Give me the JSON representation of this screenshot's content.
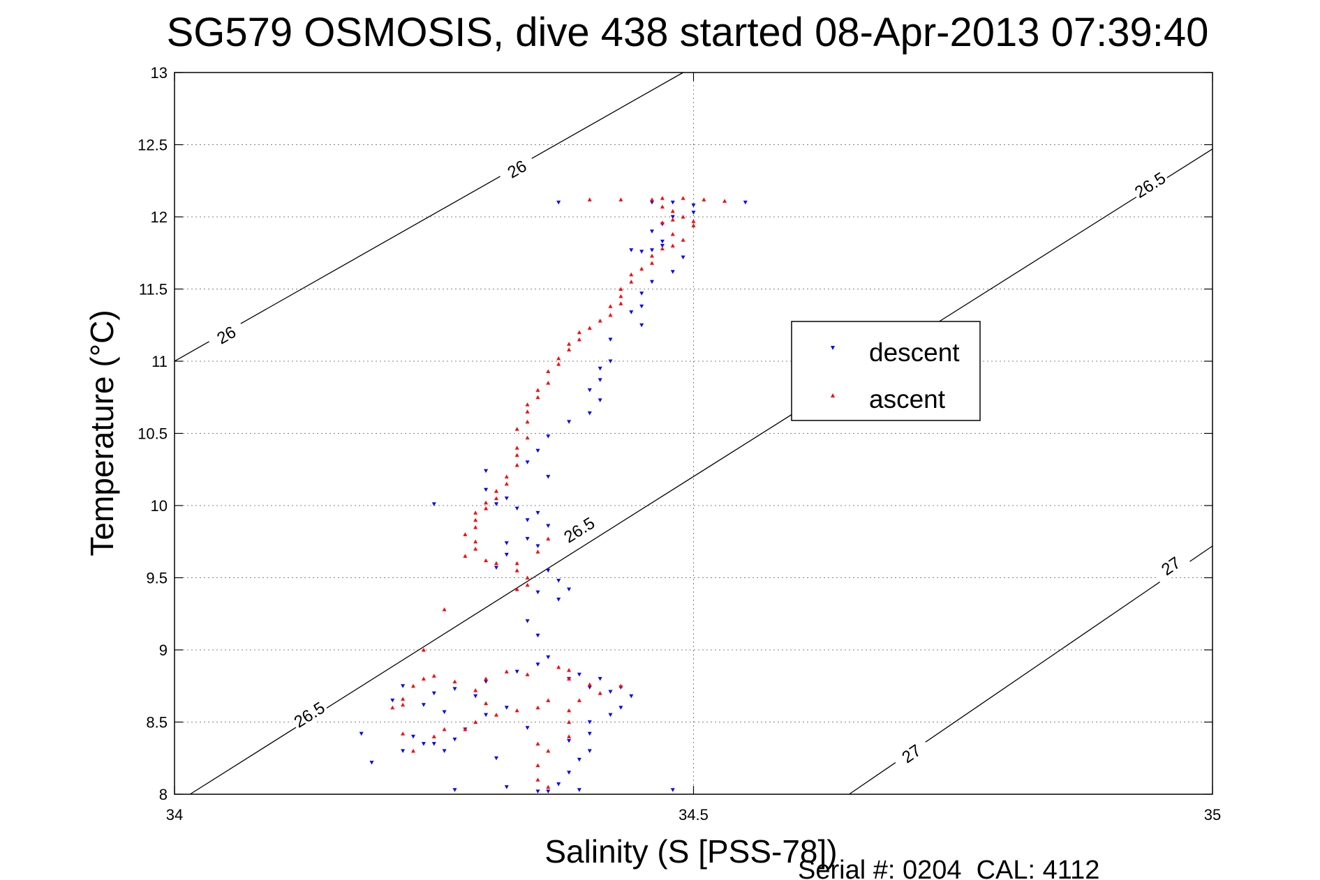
{
  "chart_data": {
    "type": "scatter",
    "title": "SG579 OSMOSIS, dive 438 started 08-Apr-2013 07:39:40",
    "xlabel": "Salinity (S [PSS-78])",
    "ylabel": "Temperature (°C)",
    "footer": "Serial #: 0204  CAL: 4112",
    "xlim": [
      34,
      35
    ],
    "ylim": [
      8,
      13
    ],
    "xticks": [
      34,
      34.5,
      35
    ],
    "xtick_labels": [
      "34",
      "34.5",
      "35"
    ],
    "yticks": [
      8,
      8.5,
      9,
      9.5,
      10,
      10.5,
      11,
      11.5,
      12,
      12.5,
      13
    ],
    "ytick_labels": [
      "8",
      "8.5",
      "9",
      "9.5",
      "10",
      "10.5",
      "11",
      "11.5",
      "12",
      "12.5",
      "13"
    ],
    "grid": true,
    "legend": {
      "placement": "right",
      "entries": [
        "descent",
        "ascent"
      ]
    },
    "colors": {
      "descent": "#0000ff",
      "ascent": "#ff0000",
      "axes": "#000000",
      "grid": "#808080"
    },
    "contours": [
      {
        "label": "26",
        "points": [
          [
            34.0,
            11.0
          ],
          [
            34.49,
            13.0
          ]
        ],
        "label_positions": [
          [
            34.05,
            11.18
          ],
          [
            34.33,
            12.33
          ]
        ]
      },
      {
        "label": "26.5",
        "points": [
          [
            34.015,
            8.0
          ],
          [
            35.0,
            12.47
          ]
        ],
        "label_positions": [
          [
            34.13,
            8.55
          ],
          [
            34.39,
            9.83
          ],
          [
            34.94,
            12.22
          ]
        ]
      },
      {
        "label": "27",
        "points": [
          [
            34.65,
            8.0
          ],
          [
            35.0,
            9.72
          ]
        ],
        "label_positions": [
          [
            34.71,
            8.28
          ],
          [
            34.96,
            9.58
          ]
        ]
      }
    ],
    "series": [
      {
        "name": "descent",
        "marker": "v",
        "points": [
          [
            34.37,
            12.1
          ],
          [
            34.55,
            12.1
          ],
          [
            34.46,
            12.1
          ],
          [
            34.48,
            12.1
          ],
          [
            34.5,
            12.08
          ],
          [
            34.5,
            12.03
          ],
          [
            34.48,
            12.0
          ],
          [
            34.47,
            11.95
          ],
          [
            34.46,
            11.9
          ],
          [
            34.47,
            11.83
          ],
          [
            34.46,
            11.77
          ],
          [
            34.45,
            11.76
          ],
          [
            34.44,
            11.77
          ],
          [
            34.47,
            11.8
          ],
          [
            34.49,
            11.72
          ],
          [
            34.48,
            11.62
          ],
          [
            34.46,
            11.55
          ],
          [
            34.45,
            11.47
          ],
          [
            34.45,
            11.38
          ],
          [
            34.44,
            11.34
          ],
          [
            34.45,
            11.25
          ],
          [
            34.42,
            11.15
          ],
          [
            34.42,
            11.0
          ],
          [
            34.41,
            10.95
          ],
          [
            34.41,
            10.87
          ],
          [
            34.4,
            10.8
          ],
          [
            34.41,
            10.73
          ],
          [
            34.4,
            10.64
          ],
          [
            34.38,
            10.58
          ],
          [
            34.36,
            10.48
          ],
          [
            34.35,
            10.38
          ],
          [
            34.34,
            10.3
          ],
          [
            34.36,
            10.2
          ],
          [
            34.3,
            10.24
          ],
          [
            34.3,
            10.11
          ],
          [
            34.32,
            10.05
          ],
          [
            34.31,
            10.01
          ],
          [
            34.33,
            9.98
          ],
          [
            34.35,
            9.95
          ],
          [
            34.34,
            9.9
          ],
          [
            34.36,
            9.86
          ],
          [
            34.34,
            9.77
          ],
          [
            34.35,
            9.72
          ],
          [
            34.32,
            9.74
          ],
          [
            34.32,
            9.66
          ],
          [
            34.31,
            9.57
          ],
          [
            34.36,
            9.55
          ],
          [
            34.37,
            9.48
          ],
          [
            34.38,
            9.42
          ],
          [
            34.35,
            9.4
          ],
          [
            34.37,
            9.35
          ],
          [
            34.34,
            9.2
          ],
          [
            34.35,
            9.1
          ],
          [
            34.25,
            10.01
          ],
          [
            34.36,
            8.95
          ],
          [
            34.38,
            8.8
          ],
          [
            34.4,
            8.74
          ],
          [
            34.42,
            8.71
          ],
          [
            34.44,
            8.68
          ],
          [
            34.43,
            8.6
          ],
          [
            34.42,
            8.55
          ],
          [
            34.4,
            8.5
          ],
          [
            34.4,
            8.42
          ],
          [
            34.38,
            8.37
          ],
          [
            34.4,
            8.3
          ],
          [
            34.39,
            8.24
          ],
          [
            34.38,
            8.15
          ],
          [
            34.37,
            8.07
          ],
          [
            34.36,
            8.02
          ],
          [
            34.39,
            8.03
          ],
          [
            34.32,
            8.05
          ],
          [
            34.35,
            8.02
          ],
          [
            34.27,
            8.03
          ],
          [
            34.22,
            8.75
          ],
          [
            34.25,
            8.7
          ],
          [
            34.27,
            8.73
          ],
          [
            34.3,
            8.78
          ],
          [
            34.33,
            8.85
          ],
          [
            34.35,
            8.9
          ],
          [
            34.32,
            8.6
          ],
          [
            34.3,
            8.55
          ],
          [
            34.28,
            8.45
          ],
          [
            34.27,
            8.38
          ],
          [
            34.26,
            8.3
          ],
          [
            34.25,
            8.35
          ],
          [
            34.23,
            8.4
          ],
          [
            34.24,
            8.62
          ],
          [
            34.21,
            8.65
          ],
          [
            34.18,
            8.42
          ],
          [
            34.19,
            8.22
          ],
          [
            34.24,
            8.35
          ],
          [
            34.22,
            8.3
          ],
          [
            34.26,
            8.57
          ],
          [
            34.29,
            8.68
          ],
          [
            34.34,
            8.46
          ],
          [
            34.31,
            8.25
          ],
          [
            34.48,
            8.03
          ],
          [
            34.43,
            8.74
          ],
          [
            34.41,
            8.8
          ],
          [
            34.39,
            8.83
          ]
        ]
      },
      {
        "name": "ascent",
        "marker": "^",
        "points": [
          [
            34.4,
            12.12
          ],
          [
            34.43,
            12.12
          ],
          [
            34.46,
            12.12
          ],
          [
            34.47,
            12.13
          ],
          [
            34.49,
            12.13
          ],
          [
            34.51,
            12.12
          ],
          [
            34.53,
            12.11
          ],
          [
            34.47,
            12.07
          ],
          [
            34.48,
            12.04
          ],
          [
            34.49,
            12.0
          ],
          [
            34.48,
            11.98
          ],
          [
            34.47,
            11.96
          ],
          [
            34.5,
            11.97
          ],
          [
            34.5,
            11.94
          ],
          [
            34.48,
            11.88
          ],
          [
            34.49,
            11.84
          ],
          [
            34.48,
            11.8
          ],
          [
            34.47,
            11.78
          ],
          [
            34.46,
            11.73
          ],
          [
            34.46,
            11.68
          ],
          [
            34.45,
            11.64
          ],
          [
            34.44,
            11.6
          ],
          [
            34.44,
            11.55
          ],
          [
            34.43,
            11.5
          ],
          [
            34.43,
            11.45
          ],
          [
            34.43,
            11.4
          ],
          [
            34.42,
            11.38
          ],
          [
            34.42,
            11.32
          ],
          [
            34.41,
            11.28
          ],
          [
            34.4,
            11.23
          ],
          [
            34.39,
            11.2
          ],
          [
            34.39,
            11.15
          ],
          [
            34.38,
            11.12
          ],
          [
            34.38,
            11.08
          ],
          [
            34.37,
            11.02
          ],
          [
            34.37,
            10.98
          ],
          [
            34.36,
            10.93
          ],
          [
            34.36,
            10.85
          ],
          [
            34.35,
            10.8
          ],
          [
            34.35,
            10.75
          ],
          [
            34.34,
            10.7
          ],
          [
            34.34,
            10.65
          ],
          [
            34.34,
            10.58
          ],
          [
            34.33,
            10.53
          ],
          [
            34.34,
            10.47
          ],
          [
            34.33,
            10.4
          ],
          [
            34.33,
            10.35
          ],
          [
            34.33,
            10.28
          ],
          [
            34.32,
            10.2
          ],
          [
            34.32,
            10.15
          ],
          [
            34.31,
            10.1
          ],
          [
            34.31,
            10.05
          ],
          [
            34.3,
            10.02
          ],
          [
            34.3,
            9.98
          ],
          [
            34.29,
            9.95
          ],
          [
            34.29,
            9.9
          ],
          [
            34.29,
            9.85
          ],
          [
            34.28,
            9.8
          ],
          [
            34.29,
            9.75
          ],
          [
            34.29,
            9.7
          ],
          [
            34.28,
            9.65
          ],
          [
            34.3,
            9.62
          ],
          [
            34.31,
            9.6
          ],
          [
            34.33,
            9.6
          ],
          [
            34.33,
            9.55
          ],
          [
            34.34,
            9.5
          ],
          [
            34.34,
            9.45
          ],
          [
            34.33,
            9.42
          ],
          [
            34.35,
            9.68
          ],
          [
            34.36,
            9.77
          ],
          [
            34.26,
            9.28
          ],
          [
            34.24,
            9.0
          ],
          [
            34.22,
            8.66
          ],
          [
            34.22,
            8.62
          ],
          [
            34.23,
            8.75
          ],
          [
            34.24,
            8.8
          ],
          [
            34.25,
            8.82
          ],
          [
            34.27,
            8.78
          ],
          [
            34.29,
            8.72
          ],
          [
            34.3,
            8.8
          ],
          [
            34.32,
            8.85
          ],
          [
            34.34,
            8.83
          ],
          [
            34.36,
            8.65
          ],
          [
            34.35,
            8.6
          ],
          [
            34.33,
            8.58
          ],
          [
            34.31,
            8.55
          ],
          [
            34.29,
            8.5
          ],
          [
            34.28,
            8.45
          ],
          [
            34.26,
            8.45
          ],
          [
            34.25,
            8.4
          ],
          [
            34.23,
            8.3
          ],
          [
            34.22,
            8.42
          ],
          [
            34.21,
            8.6
          ],
          [
            34.3,
            8.63
          ],
          [
            34.35,
            8.35
          ],
          [
            34.36,
            8.3
          ],
          [
            34.35,
            8.2
          ],
          [
            34.35,
            8.1
          ],
          [
            34.36,
            8.05
          ],
          [
            34.38,
            8.4
          ],
          [
            34.38,
            8.5
          ],
          [
            34.38,
            8.58
          ],
          [
            34.39,
            8.65
          ],
          [
            34.41,
            8.7
          ],
          [
            34.43,
            8.75
          ],
          [
            34.4,
            8.76
          ],
          [
            34.38,
            8.8
          ],
          [
            34.37,
            8.88
          ],
          [
            34.38,
            8.86
          ],
          [
            34.4,
            8.76
          ]
        ]
      }
    ]
  }
}
